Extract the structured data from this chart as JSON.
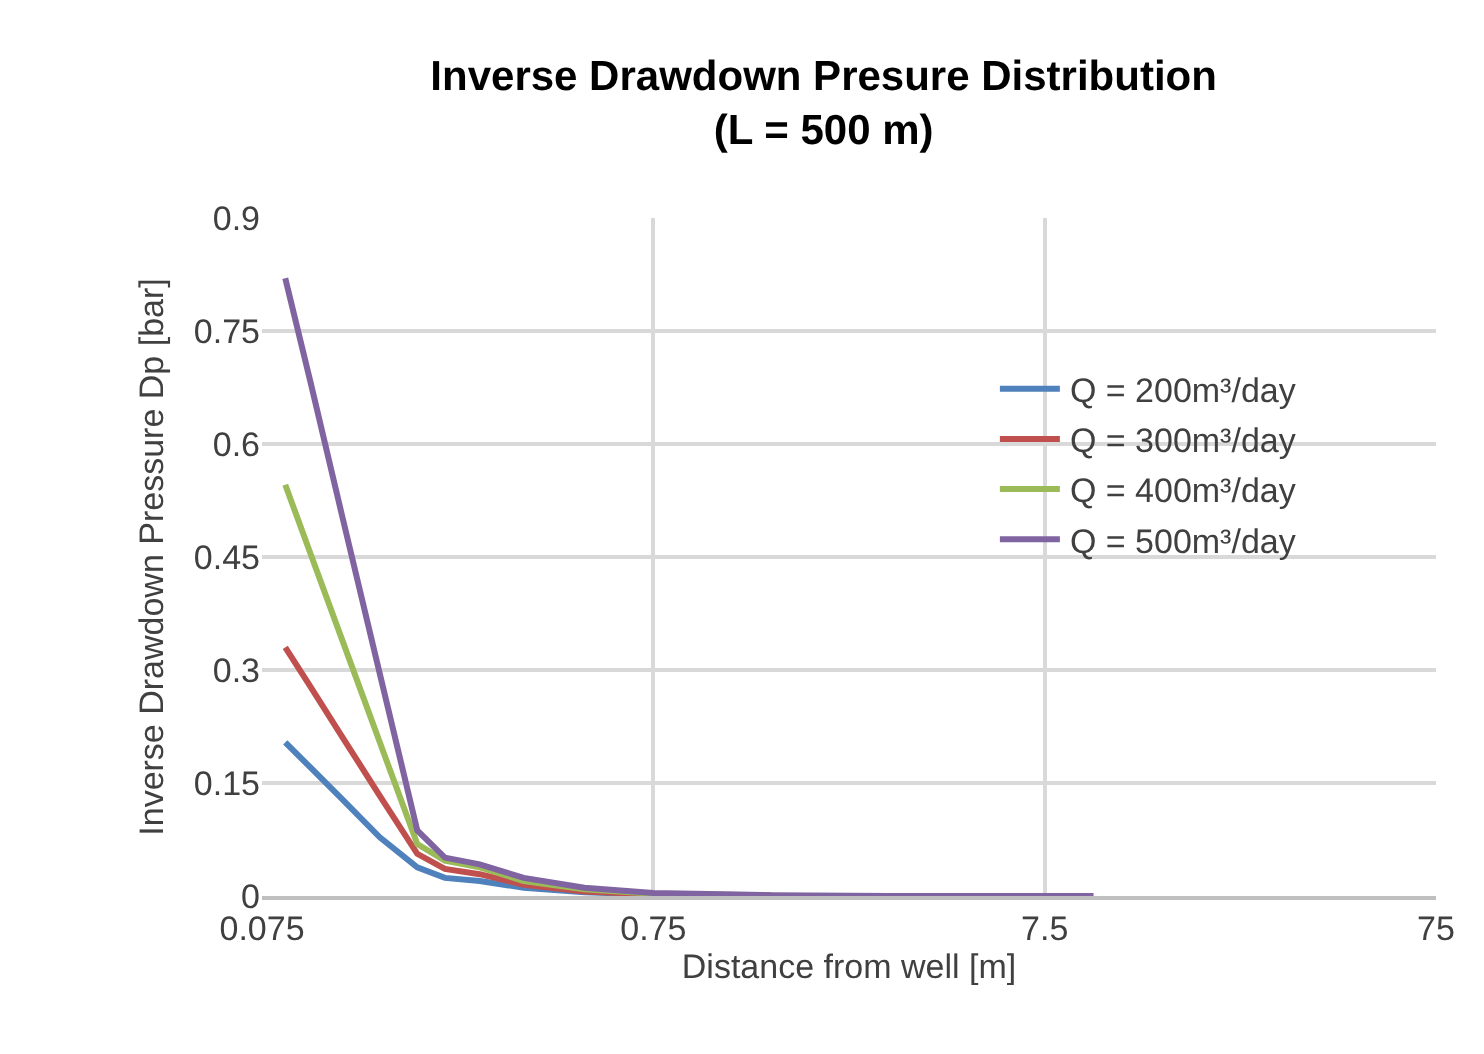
{
  "chart_data": {
    "type": "line",
    "title": "Inverse Drawdown Presure Distribution\n(L = 500 m)",
    "xlabel": "Distance from well [m]",
    "ylabel": "Inverse Drawdown Pressure Dp [bar]",
    "x": [
      0.086,
      0.1,
      0.12,
      0.15,
      0.187,
      0.22,
      0.27,
      0.35,
      0.5,
      0.75,
      1.5,
      3,
      10
    ],
    "series": [
      {
        "name": "Q = 200m³/day",
        "color": "#4f81bd",
        "values": [
          0.204,
          0.17,
          0.129,
          0.078,
          0.038,
          0.024,
          0.02,
          0.011,
          0.005,
          0.002,
          0.001,
          null,
          null
        ]
      },
      {
        "name": "Q = 300m³/day",
        "color": "#c0504d",
        "values": [
          0.33,
          0.277,
          0.212,
          0.133,
          0.056,
          0.036,
          0.029,
          0.015,
          0.006,
          0.002,
          0.001,
          null,
          null
        ]
      },
      {
        "name": "Q = 400m³/day",
        "color": "#9bbb59",
        "values": [
          0.546,
          0.453,
          0.341,
          0.204,
          0.069,
          0.047,
          0.038,
          0.02,
          0.009,
          0.003,
          0.001,
          null,
          null
        ]
      },
      {
        "name": "Q = 500m³/day",
        "color": "#8064a2",
        "values": [
          0.82,
          0.68,
          0.506,
          0.295,
          0.087,
          0.051,
          0.042,
          0.024,
          0.011,
          0.004,
          0.001,
          0,
          0
        ]
      }
    ],
    "log": "x",
    "xlim": [
      0.075,
      75
    ],
    "xticks": [
      0.075,
      0.75,
      7.5,
      75
    ],
    "ylim": [
      0,
      0.9
    ],
    "yticks": [
      0,
      0.15,
      0.3,
      0.45,
      0.6,
      0.75,
      0.9
    ],
    "grid": true,
    "legend": "right",
    "marker": "none",
    "line_style": "solid"
  }
}
